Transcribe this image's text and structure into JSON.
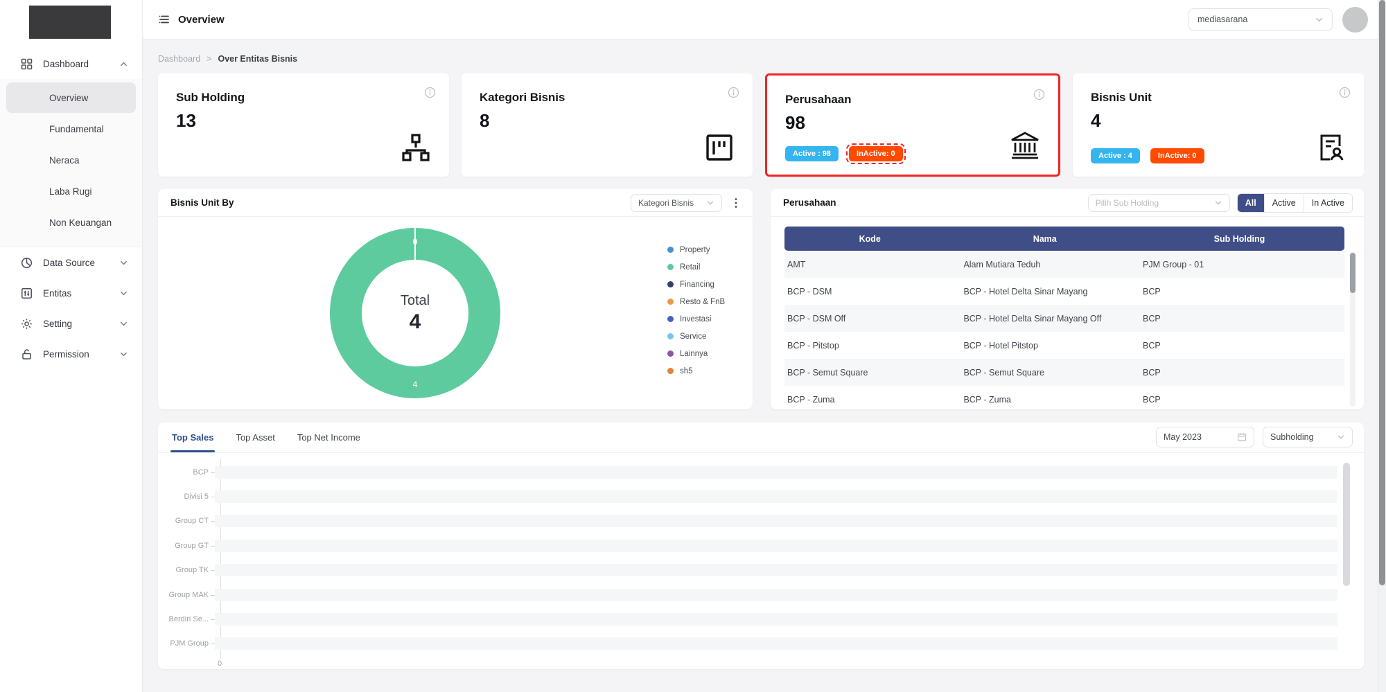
{
  "topbar": {
    "title": "Overview",
    "tenant_select": "mediasarana"
  },
  "breadcrumb": {
    "root": "Dashboard",
    "separator": ">",
    "current": "Over Entitas Bisnis"
  },
  "sidebar": {
    "items": [
      {
        "label": "Dashboard",
        "icon": "grid-icon",
        "expanded": true,
        "children": [
          {
            "label": "Overview",
            "active": true
          },
          {
            "label": "Fundamental",
            "active": false
          },
          {
            "label": "Neraca",
            "active": false
          },
          {
            "label": "Laba Rugi",
            "active": false
          },
          {
            "label": "Non Keuangan",
            "active": false
          }
        ]
      },
      {
        "label": "Data Source",
        "icon": "pie-chart-icon",
        "expanded": false
      },
      {
        "label": "Entitas",
        "icon": "entity-icon",
        "expanded": false
      },
      {
        "label": "Setting",
        "icon": "gear-icon",
        "expanded": false
      },
      {
        "label": "Permission",
        "icon": "lock-icon",
        "expanded": false
      }
    ]
  },
  "stat_cards": [
    {
      "title": "Sub Holding",
      "value": "13",
      "icon": "org-chart-icon",
      "highlighted": false,
      "badges": []
    },
    {
      "title": "Kategori Bisnis",
      "value": "8",
      "icon": "kanban-icon",
      "highlighted": false,
      "badges": []
    },
    {
      "title": "Perusahaan",
      "value": "98",
      "icon": "bank-icon",
      "highlighted": true,
      "badges": [
        {
          "label": "Active : 98",
          "type": "active",
          "flagged": false
        },
        {
          "label": "InActive: 0",
          "type": "inactive",
          "flagged": true
        }
      ]
    },
    {
      "title": "Bisnis Unit",
      "value": "4",
      "icon": "file-person-icon",
      "highlighted": false,
      "badges": [
        {
          "label": "Active : 4",
          "type": "active",
          "flagged": false
        },
        {
          "label": "InActive: 0",
          "type": "inactive",
          "flagged": false
        }
      ]
    }
  ],
  "colors": {
    "active_badge": "#35b5ef",
    "inactive_badge": "#ff4a00",
    "highlight_red": "#ee2524",
    "navy": "#3f4e87",
    "donut_green": "#5ecb9e"
  },
  "bisnis_unit_panel": {
    "title": "Bisnis Unit By",
    "filter_value": "Kategori Bisnis",
    "chart_data": {
      "type": "donut",
      "center_label": "Total",
      "center_value": "4",
      "top_slice_label": "0",
      "bottom_slice_label": "4",
      "slices": [
        {
          "label": "Retail",
          "value": 4,
          "color": "#5ecb9e"
        }
      ],
      "legend": [
        {
          "label": "Property",
          "color": "#4a90d5"
        },
        {
          "label": "Retail",
          "color": "#5ecb9e"
        },
        {
          "label": "Financing",
          "color": "#333f6b"
        },
        {
          "label": "Resto & FnB",
          "color": "#eb9a4f"
        },
        {
          "label": "Investasi",
          "color": "#4562c1"
        },
        {
          "label": "Service",
          "color": "#74c7ea"
        },
        {
          "label": "Lainnya",
          "color": "#8d56a5"
        },
        {
          "label": "sh5",
          "color": "#e0833f"
        }
      ]
    }
  },
  "perusahaan_panel": {
    "title": "Perusahaan",
    "filter_placeholder": "Pilih Sub Holding",
    "segments": [
      "All",
      "Active",
      "In Active"
    ],
    "active_segment": "All",
    "table": {
      "columns": [
        "Kode",
        "Nama",
        "Sub Holding"
      ],
      "rows": [
        [
          "AMT",
          "Alam Mutiara Teduh",
          "PJM Group - 01"
        ],
        [
          "BCP - DSM",
          "BCP - Hotel Delta Sinar Mayang",
          "BCP"
        ],
        [
          "BCP - DSM Off",
          "BCP - Hotel Delta Sinar Mayang Off",
          "BCP"
        ],
        [
          "BCP - Pitstop",
          "BCP - Hotel Pitstop",
          "BCP"
        ],
        [
          "BCP - Semut Square",
          "BCP - Semut Square",
          "BCP"
        ],
        [
          "BCP - Zuma",
          "BCP - Zuma",
          "BCP"
        ]
      ]
    }
  },
  "top_panel": {
    "tabs": [
      "Top Sales",
      "Top Asset",
      "Top Net Income"
    ],
    "active_tab": "Top Sales",
    "date_value": "May 2023",
    "subholding_value": "Subholding",
    "chart_data": {
      "type": "bar",
      "orientation": "horizontal",
      "categories": [
        "BCP",
        "Divisi 5",
        "Group CT",
        "Group GT",
        "Group TK",
        "Group MAK",
        "Berdiri Se...",
        "PJM Group"
      ],
      "values": [
        0,
        0,
        0,
        0,
        0,
        0,
        0,
        0
      ],
      "x_ticks": [
        "0"
      ],
      "xlim": [
        0,
        1
      ]
    }
  }
}
